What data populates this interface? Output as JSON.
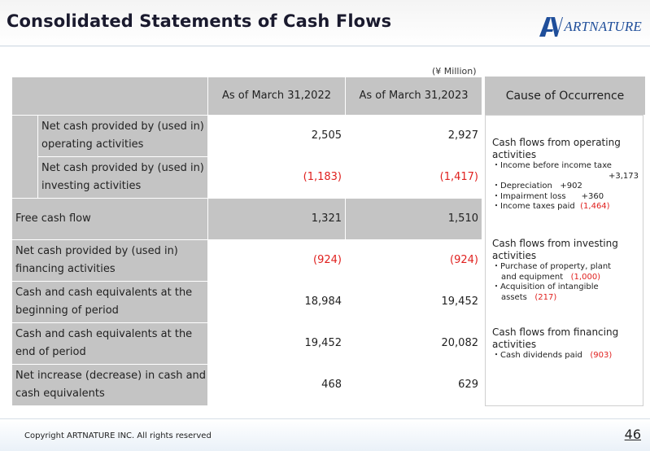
{
  "slide": {
    "title": "Consolidated Statements of Cash Flows",
    "logo_text": "ARTNATURE",
    "unit": "(¥ Million)",
    "copyright": "Copyright ARTNATURE INC. All rights reserved",
    "page_number": "46"
  },
  "table": {
    "headers": [
      "As of March 31,2022",
      "As of March 31,2023"
    ],
    "rows": [
      {
        "label": "Net cash provided by (used in) operating activities",
        "v2022": "2,505",
        "v2023": "2,927"
      },
      {
        "label": "Net cash provided by (used in) investing activities",
        "v2022": "(1,183)",
        "v2023": "(1,417)"
      },
      {
        "label": "Free cash flow",
        "v2022": "1,321",
        "v2023": "1,510"
      },
      {
        "label": "Net cash provided by (used in) financing activities",
        "v2022": "(924)",
        "v2023": "(924)"
      },
      {
        "label": "Cash and cash equivalents at the beginning of period",
        "v2022": "18,984",
        "v2023": "19,452"
      },
      {
        "label": "Cash and cash equivalents at the end of period",
        "v2022": "19,452",
        "v2023": "20,082"
      },
      {
        "label": "Net increase (decrease) in cash and cash equivalents",
        "v2022": "468",
        "v2023": "629"
      }
    ]
  },
  "cause": {
    "title": "Cause of Occurrence",
    "operating": {
      "title": "Cash flows from operating activities",
      "items": [
        {
          "text": "・Income before income taxe",
          "value": "+3,173"
        },
        {
          "text": "・Depreciation",
          "value": "+902"
        },
        {
          "text": "・Impairment loss",
          "value": "+360"
        },
        {
          "text": "・Income taxes paid",
          "value": "(1,464)"
        }
      ]
    },
    "investing": {
      "title": "Cash flows from investing activities",
      "items": [
        {
          "text": "・Purchase of property, plant",
          "text2": "and equipment",
          "value": "(1,000)"
        },
        {
          "text": "・Acquisition of intangible",
          "text2": "assets",
          "value": "(217)"
        }
      ]
    },
    "financing": {
      "title": "Cash flows from financing activities",
      "items": [
        {
          "text": "・Cash dividends paid",
          "value": "(903)"
        }
      ]
    }
  }
}
